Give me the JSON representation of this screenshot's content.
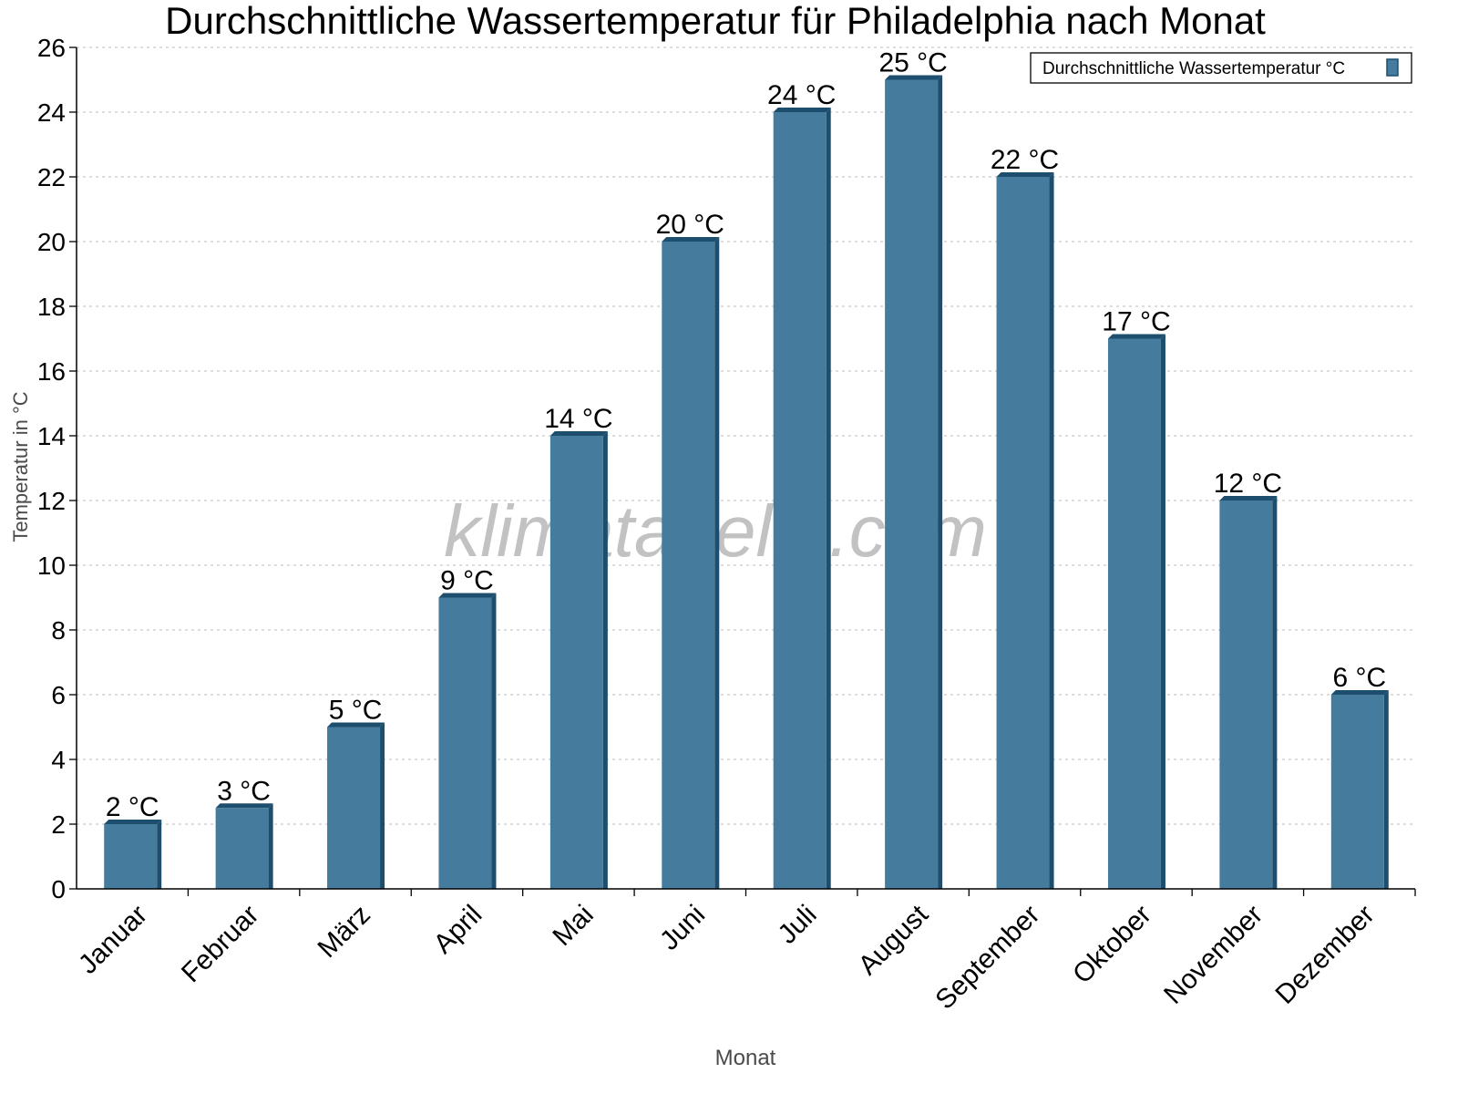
{
  "chart_data": {
    "type": "bar",
    "title": "Durchschnittliche Wassertemperatur für Philadelphia nach Monat",
    "xlabel": "Monat",
    "ylabel": "Temperatur in °C",
    "ylim": [
      0,
      26
    ],
    "yticks": [
      "0",
      "2",
      "4",
      "6",
      "8",
      "10",
      "12",
      "14",
      "16",
      "18",
      "20",
      "22",
      "24",
      "26"
    ],
    "grid": true,
    "legend_position": "top-right",
    "categories": [
      "Januar",
      "Februar",
      "März",
      "April",
      "Mai",
      "Juni",
      "Juli",
      "August",
      "September",
      "Oktober",
      "November",
      "Dezember"
    ],
    "series": [
      {
        "name": "Durchschnittliche Wassertemperatur °C",
        "color": "#457b9d",
        "side_color": "#1d4e6e",
        "values": [
          2,
          2.5,
          5,
          9,
          14,
          20,
          24,
          25,
          22,
          17,
          12,
          6
        ],
        "data_labels": [
          "2 °C",
          "3 °C",
          "5 °C",
          "9 °C",
          "14 °C",
          "20 °C",
          "24 °C",
          "25 °C",
          "22 °C",
          "17 °C",
          "12 °C",
          "6 °C"
        ]
      }
    ],
    "watermark": "klimatabelle.com"
  }
}
